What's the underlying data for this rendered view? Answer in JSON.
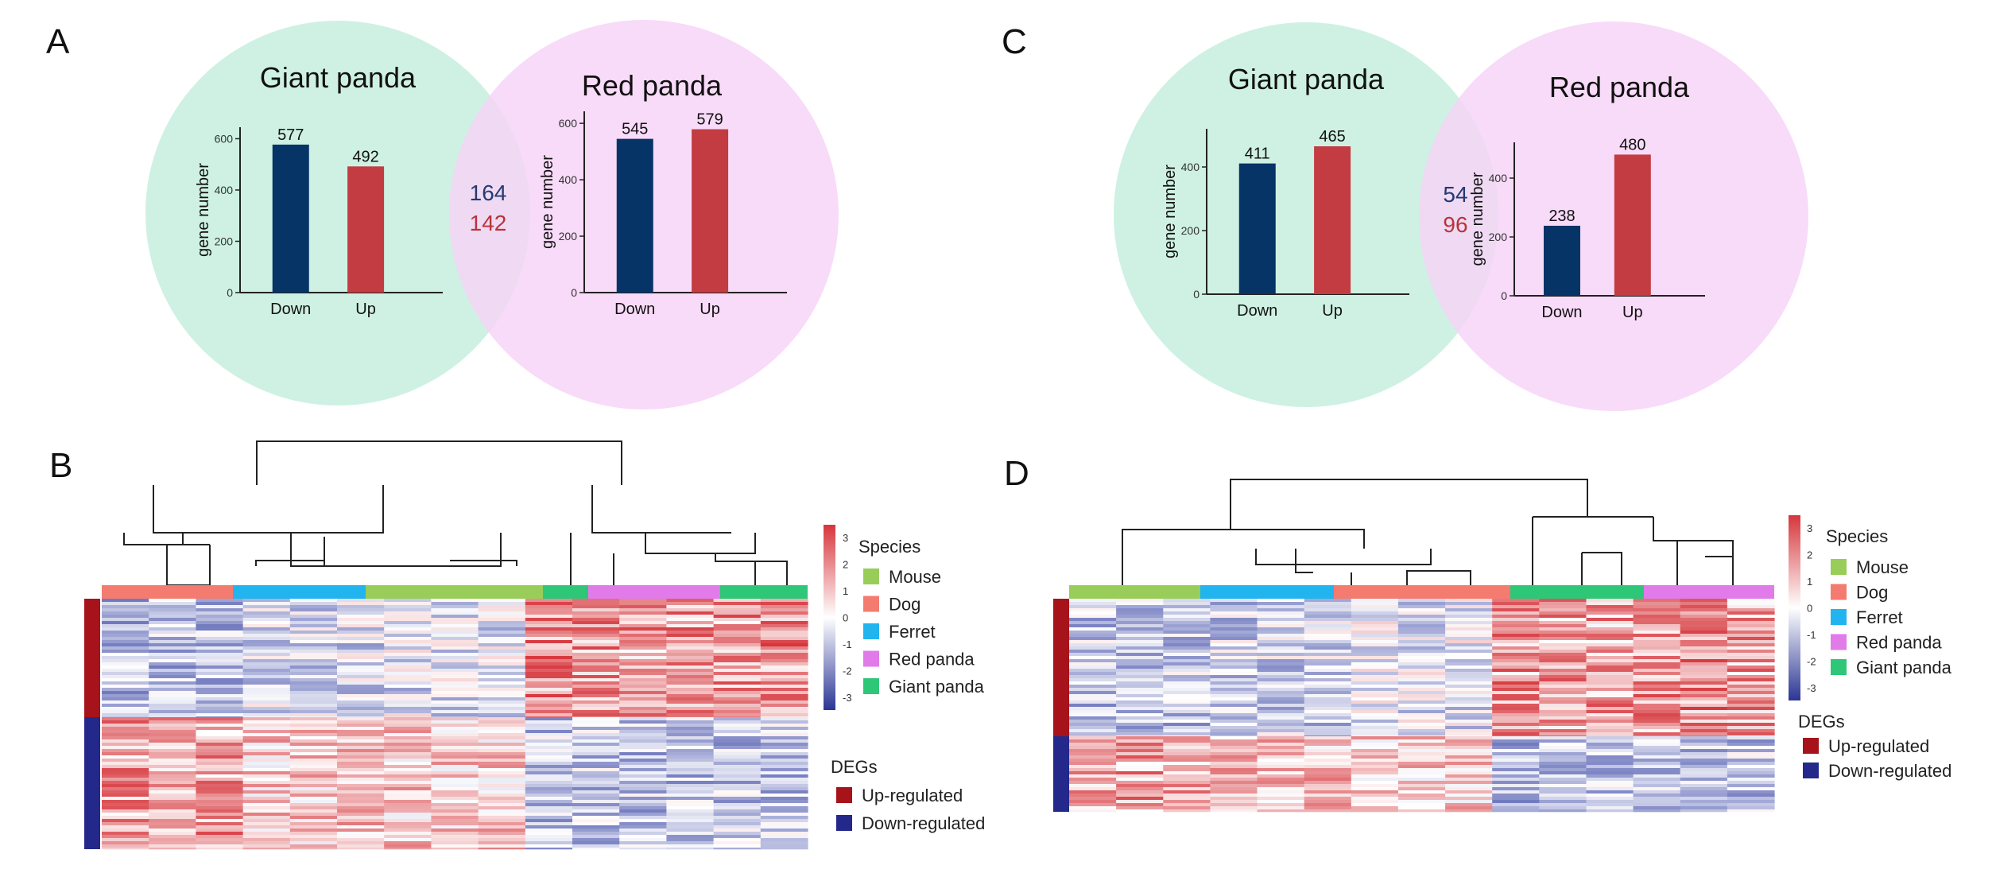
{
  "panel_labels": {
    "a": "A",
    "b": "B",
    "c": "C",
    "d": "D"
  },
  "colors": {
    "giant_circle": "#c6eedf",
    "red_circle": "#f6d3f6",
    "down_bar": "#073466",
    "up_bar": "#c23c41",
    "up_text": "#b8333b",
    "down_text": "#233a73",
    "heat_up": "#d6363c",
    "heat_down": "#3a46a6",
    "heat_mid": "#ffffff",
    "species": {
      "Mouse": "#98cd5a",
      "Dog": "#f47b70",
      "Ferret": "#21b4ef",
      "Red panda": "#e07be9",
      "Giant panda": "#2ec777"
    },
    "degs": {
      "Up-regulated": "#a7131a",
      "Down-regulated": "#24288a"
    }
  },
  "venn": {
    "a": {
      "left_title": "Giant panda",
      "right_title": "Red panda",
      "overlap_down": "164",
      "overlap_up": "142"
    },
    "c": {
      "left_title": "Giant panda",
      "right_title": "Red panda",
      "overlap_down": "54",
      "overlap_up": "96"
    }
  },
  "legend_labels": {
    "species_title": "Species",
    "degs_title": "DEGs",
    "species": [
      "Mouse",
      "Dog",
      "Ferret",
      "Red panda",
      "Giant panda"
    ],
    "degs": [
      "Up-regulated",
      "Down-regulated"
    ],
    "scale_ticks": [
      "3",
      "2",
      "1",
      "0",
      "-1",
      "-2",
      "-3"
    ]
  },
  "chart_data": [
    {
      "id": "A-giant",
      "type": "bar",
      "categories": [
        "Down",
        "Up"
      ],
      "values": [
        577,
        492
      ],
      "value_labels": [
        "577",
        "492"
      ],
      "ylabel": "gene number",
      "yticks": [
        "0",
        "200",
        "400",
        "600"
      ],
      "ylim": [
        0,
        620
      ]
    },
    {
      "id": "A-red",
      "type": "bar",
      "categories": [
        "Down",
        "Up"
      ],
      "values": [
        545,
        579
      ],
      "value_labels": [
        "545",
        "579"
      ],
      "ylabel": "gene number",
      "yticks": [
        "0",
        "200",
        "400",
        "600"
      ],
      "ylim": [
        0,
        620
      ]
    },
    {
      "id": "C-giant",
      "type": "bar",
      "categories": [
        "Down",
        "Up"
      ],
      "values": [
        411,
        465
      ],
      "value_labels": [
        "411",
        "465"
      ],
      "ylabel": "gene number",
      "yticks": [
        "0",
        "200",
        "400"
      ],
      "ylim": [
        0,
        500
      ]
    },
    {
      "id": "C-red",
      "type": "bar",
      "categories": [
        "Down",
        "Up"
      ],
      "values": [
        238,
        480
      ],
      "value_labels": [
        "238",
        "480"
      ],
      "ylabel": "gene number",
      "yticks": [
        "0",
        "200",
        "400"
      ],
      "ylim": [
        0,
        500
      ]
    },
    {
      "id": "B-heatmap",
      "type": "heatmap",
      "value_range": [
        -3,
        3
      ],
      "column_groups": [
        "Dog",
        "Ferret",
        "Mouse",
        "Giant panda",
        "Red panda",
        "Giant panda"
      ],
      "row_groups": [
        "Up-regulated",
        "Down-regulated"
      ],
      "up_block_values": [
        -1,
        -1,
        -1,
        -0.6,
        -0.6,
        -0.6,
        -0.5,
        -0.5,
        -0.5,
        1.6,
        1.6,
        1.4,
        1.5,
        1.4,
        1.6
      ],
      "down_block_values": [
        1.4,
        1.2,
        1.4,
        0.8,
        0.8,
        1.0,
        0.8,
        0.8,
        0.8,
        -0.9,
        -0.9,
        -0.9,
        -0.9,
        -0.9,
        -0.9
      ]
    },
    {
      "id": "D-heatmap",
      "type": "heatmap",
      "value_range": [
        -3,
        3
      ],
      "column_groups": [
        "Mouse",
        "Ferret",
        "Dog",
        "Giant panda",
        "Red panda"
      ],
      "row_groups": [
        "Up-regulated",
        "Down-regulated"
      ],
      "up_block_values": [
        -0.9,
        -0.9,
        -0.9,
        -0.7,
        -0.7,
        -0.7,
        -0.4,
        -0.4,
        -0.4,
        1.5,
        1.4,
        1.3,
        1.4,
        1.6,
        1.3
      ],
      "down_block_values": [
        1.2,
        1.3,
        1.2,
        1.0,
        1.0,
        1.0,
        0.7,
        0.8,
        0.7,
        -1.0,
        -1.0,
        -0.9,
        -0.9,
        -0.9,
        -0.9
      ]
    }
  ]
}
